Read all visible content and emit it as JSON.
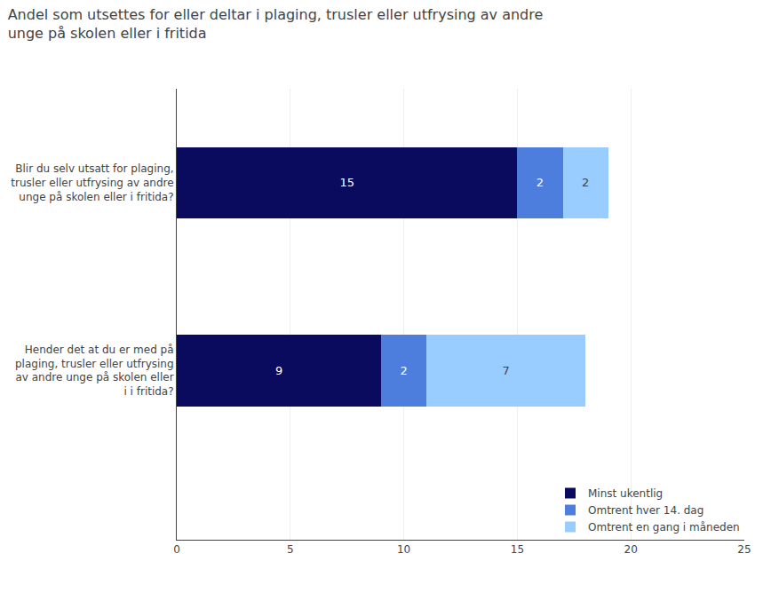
{
  "chart_data": {
    "type": "bar",
    "orientation": "horizontal",
    "stacked": true,
    "title": "Andel som utsettes for eller deltar i plaging, trusler eller utfrysing av andre\nunge på skolen eller i fritida",
    "categories": [
      "Blir du selv utsatt for plaging,\ntrusler eller utfrysing av andre\nunge på skolen eller i fritida?",
      "Hender det at du er med på\nplaging, trusler eller utfrysing\nav andre unge på skolen eller\ni i fritida?"
    ],
    "series": [
      {
        "name": "Minst ukentlig",
        "color": "#0a0a5e",
        "values": [
          15,
          9
        ]
      },
      {
        "name": "Omtrent hver 14. dag",
        "color": "#4d7edd",
        "values": [
          2,
          2
        ]
      },
      {
        "name": "Omtrent en gang i måneden",
        "color": "#99ccff",
        "values": [
          2,
          7
        ]
      }
    ],
    "xlim": [
      0,
      25
    ],
    "xticks": [
      0,
      5,
      10,
      15,
      20,
      25
    ],
    "grid": true,
    "legend": "lower right",
    "data_labels": true
  }
}
